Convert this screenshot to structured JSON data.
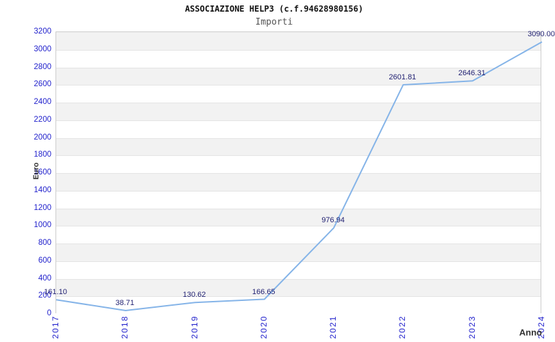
{
  "header": {
    "title": "ASSOCIAZIONE HELP3 (c.f.94628980156)",
    "subtitle": "Importi"
  },
  "chart_data": {
    "type": "line",
    "title": "ASSOCIAZIONE HELP3 (c.f.94628980156)",
    "subtitle": "Importi",
    "xlabel": "Anno",
    "ylabel": "Euro",
    "categories": [
      "2017",
      "2018",
      "2019",
      "2020",
      "2021",
      "2022",
      "2023",
      "2024"
    ],
    "values": [
      161.1,
      38.71,
      130.62,
      166.65,
      976.94,
      2601.81,
      2646.31,
      3090.0
    ],
    "point_labels": [
      "161.10",
      "38.71",
      "130.62",
      "166.65",
      "976.94",
      "2601.81",
      "2646.31",
      "3090.00"
    ],
    "ylim": [
      0,
      3200
    ],
    "ytick_step": 200,
    "yticks": [
      "0",
      "200",
      "400",
      "600",
      "800",
      "1000",
      "1200",
      "1400",
      "1600",
      "1800",
      "2000",
      "2200",
      "2400",
      "2600",
      "2800",
      "3000",
      "3200"
    ],
    "grid": "alternating-horizontal-bands",
    "legend": "none",
    "colors": {
      "line": "#85b4e8",
      "axis_tick_text": "#2222cc",
      "point_label_text": "#1e1e70",
      "band_fill": "#f2f2f2",
      "grid_line": "#e4e4e4",
      "plot_border": "#cccccc",
      "title_text": "#111111",
      "subtitle_text": "#555555",
      "axis_title_text": "#333333",
      "background": "#ffffff"
    }
  }
}
